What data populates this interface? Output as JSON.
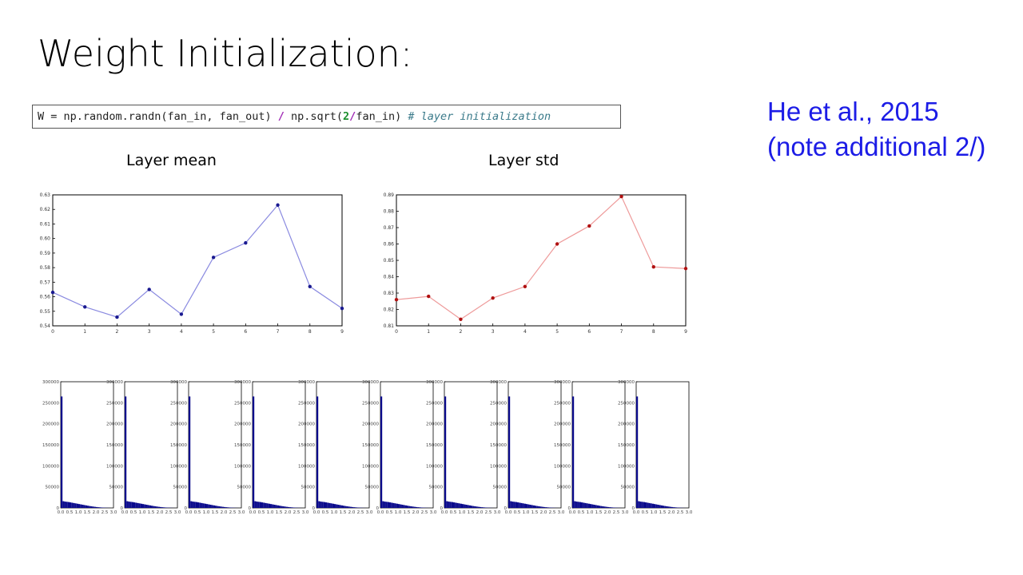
{
  "slide": {
    "title": "Weight Initialization:",
    "code": {
      "lhs": "W = np.random.randn(fan_in, fan_out) ",
      "op": "/",
      "mid": " np.sqrt(",
      "num": "2",
      "op2": "/",
      "rest": "fan_in) ",
      "comment": "# layer initialization"
    },
    "note_line1": "He et al., 2015",
    "note_line2": "(note additional 2/)"
  },
  "colors": {
    "mean_line": "#8a8ae0",
    "mean_marker": "#1a1a90",
    "std_line": "#ee9a9a",
    "std_marker": "#b01010",
    "hist_fill": "#0a0a8c",
    "axis": "#000000"
  },
  "chart_data": [
    {
      "type": "line",
      "title": "Layer mean",
      "x": [
        0,
        1,
        2,
        3,
        4,
        5,
        6,
        7,
        8,
        9
      ],
      "values": [
        0.563,
        0.553,
        0.546,
        0.565,
        0.548,
        0.587,
        0.597,
        0.623,
        0.567,
        0.552
      ],
      "xlim": [
        0,
        9
      ],
      "ylim": [
        0.54,
        0.63
      ],
      "xticks": [
        "0",
        "1",
        "2",
        "3",
        "4",
        "5",
        "6",
        "7",
        "8",
        "9"
      ],
      "yticks": [
        "0.54",
        "0.55",
        "0.56",
        "0.57",
        "0.58",
        "0.59",
        "0.60",
        "0.61",
        "0.62",
        "0.63"
      ],
      "grid": false
    },
    {
      "type": "line",
      "title": "Layer std",
      "x": [
        0,
        1,
        2,
        3,
        4,
        5,
        6,
        7,
        8,
        9
      ],
      "values": [
        0.826,
        0.828,
        0.814,
        0.827,
        0.834,
        0.86,
        0.871,
        0.889,
        0.846,
        0.845
      ],
      "xlim": [
        0,
        9
      ],
      "ylim": [
        0.81,
        0.89
      ],
      "xticks": [
        "0",
        "1",
        "2",
        "3",
        "4",
        "5",
        "6",
        "7",
        "8",
        "9"
      ],
      "yticks": [
        "0.81",
        "0.82",
        "0.83",
        "0.84",
        "0.85",
        "0.86",
        "0.87",
        "0.88",
        "0.89"
      ],
      "grid": false
    },
    {
      "type": "bar",
      "title": "",
      "count": 10,
      "ylim": [
        0,
        300000
      ],
      "yticks": [
        "0",
        "50000",
        "100000",
        "150000",
        "200000",
        "250000",
        "300000"
      ],
      "xticks": [
        "0.0",
        "0.5",
        "1.0",
        "1.5",
        "2.0",
        "2.5",
        "3.0"
      ],
      "xlim": [
        0,
        3
      ],
      "bins": [
        0,
        0.1,
        0.2,
        0.3,
        0.4,
        0.5,
        0.6,
        0.7,
        0.8,
        0.9,
        1.0,
        1.1,
        1.2,
        1.3,
        1.4,
        1.5,
        1.6,
        1.7,
        1.8,
        1.9,
        2.0,
        2.1,
        2.2,
        2.3,
        2.4,
        2.5,
        2.6,
        2.7
      ],
      "values": [
        265000,
        16000,
        15000,
        14500,
        14000,
        13200,
        12400,
        11600,
        10800,
        10000,
        9200,
        8400,
        7600,
        6800,
        6000,
        5200,
        4500,
        3800,
        3200,
        2600,
        2100,
        1700,
        1300,
        1000,
        700,
        500,
        300,
        150
      ]
    }
  ]
}
